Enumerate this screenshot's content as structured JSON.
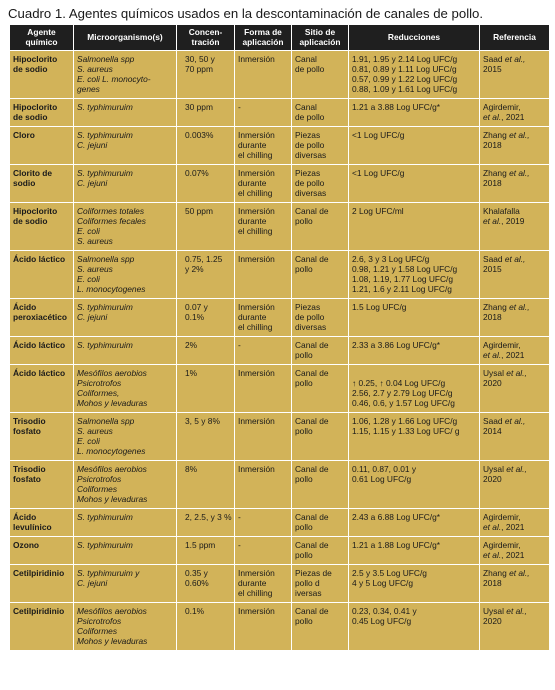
{
  "caption": "Cuadro 1. Agentes químicos usados en la descontaminación de canales de pollo.",
  "headers": [
    [
      "Agente",
      "químico"
    ],
    [
      "Microorganismo(s)"
    ],
    [
      "Concen-",
      "tración"
    ],
    [
      "Forma de",
      "aplicación"
    ],
    [
      "Sitio de",
      "aplicación"
    ],
    [
      "Reducciones"
    ],
    [
      "Referencia"
    ]
  ],
  "rows": [
    {
      "agent": [
        "Hipoclorito",
        "de sodio"
      ],
      "micro": [
        "Salmonella spp",
        "S. aureus",
        "E. coli  L. monocyto-",
        "genes"
      ],
      "conc": [
        "30, 50 y",
        "70 ppm"
      ],
      "form": [
        "Inmersión"
      ],
      "site": [
        "Canal",
        "de pollo"
      ],
      "red": [
        "1.91, 1.95 y 2.14 Log UFC/g",
        "0.81, 0.89 y 1.11 Log UFC/g",
        "0.57, 0.99 y 1.22 Log UFC/g",
        "0.88, 1.09 y 1.61 Log UFC/g"
      ],
      "ref": [
        [
          "Saad ",
          "et al.,"
        ],
        [
          "2015"
        ]
      ]
    },
    {
      "agent": [
        "Hipoclorito",
        "de sodio"
      ],
      "micro": [
        "S. typhimuruim"
      ],
      "conc": [
        "30 ppm"
      ],
      "form": [
        "-"
      ],
      "site": [
        "Canal",
        "de pollo"
      ],
      "red": [
        "1.21 a 3.88 Log UFC/g*"
      ],
      "ref": [
        [
          "Agirdemir,"
        ],
        [
          "",
          "et al.",
          ", 2021"
        ]
      ]
    },
    {
      "agent": [
        "Cloro"
      ],
      "micro": [
        "S. typhimuruim",
        "C. jejuni"
      ],
      "conc": [
        "0.003%"
      ],
      "form": [
        "Inmersión",
        "durante",
        "el chilling"
      ],
      "site": [
        "Piezas",
        "de pollo",
        "diversas"
      ],
      "red": [
        "<1 Log UFC/g"
      ],
      "ref": [
        [
          "Zhang ",
          "et al.,"
        ],
        [
          "2018"
        ]
      ]
    },
    {
      "agent": [
        "Clorito de",
        "sodio"
      ],
      "micro": [
        "S. typhimuruim",
        "C. jejuni"
      ],
      "conc": [
        "0.07%"
      ],
      "form": [
        "Inmersión",
        "durante",
        "el chilling"
      ],
      "site": [
        "Piezas",
        "de pollo",
        "diversas"
      ],
      "red": [
        "<1 Log UFC/g"
      ],
      "ref": [
        [
          "Zhang ",
          "et al.,"
        ],
        [
          "2018"
        ]
      ]
    },
    {
      "agent": [
        "Hipoclorito",
        "de sodio"
      ],
      "micro": [
        "Coliformes totales",
        "Coliformes fecales",
        "E. coli",
        "S. aureus"
      ],
      "conc": [
        "50 ppm"
      ],
      "form": [
        "Inmersión",
        "durante",
        "el chilling"
      ],
      "site": [
        "Canal de",
        "pollo"
      ],
      "red": [
        "2 Log UFC/ml"
      ],
      "ref": [
        [
          "Khalafalla"
        ],
        [
          "",
          "et al.",
          ", 2019"
        ]
      ]
    },
    {
      "agent": [
        "Ácido láctico"
      ],
      "micro": [
        "Salmonella spp",
        "S. aureus",
        "E. coli",
        "L. monocytogenes"
      ],
      "conc": [
        "0.75, 1.25",
        "y 2%"
      ],
      "form": [
        "Inmersión"
      ],
      "site": [
        "Canal de",
        "pollo"
      ],
      "red": [
        "2.6, 3 y 3 Log UFC/g",
        "0.98, 1.21 y 1.58 Log UFC/g",
        "1.08, 1.19, 1.77 Log UFC/g",
        "1.21, 1.6 y 2.11 Log UFC/g"
      ],
      "ref": [
        [
          "Saad ",
          "et al.,"
        ],
        [
          "2015"
        ]
      ]
    },
    {
      "agent": [
        "Ácido",
        "peroxiacético"
      ],
      "micro": [
        "S. typhimuruim",
        "C. jejuni"
      ],
      "conc": [
        "0.07 y",
        "0.1%"
      ],
      "form": [
        "Inmersión",
        "durante",
        "el chilling"
      ],
      "site": [
        "Piezas",
        "de pollo",
        "diversas"
      ],
      "red": [
        "1.5 Log UFC/g"
      ],
      "ref": [
        [
          "Zhang ",
          "et al.,"
        ],
        [
          "2018"
        ]
      ]
    },
    {
      "agent": [
        "Ácido láctico"
      ],
      "micro": [
        "S. typhimuruim"
      ],
      "conc": [
        "2%"
      ],
      "form": [
        "-"
      ],
      "site": [
        "Canal de",
        "pollo"
      ],
      "red": [
        "2.33 a 3.86 Log UFC/g*"
      ],
      "ref": [
        [
          "Agirdemir,"
        ],
        [
          "",
          "et al.",
          ", 2021"
        ]
      ]
    },
    {
      "agent": [
        "Ácido láctico"
      ],
      "micro": [
        "Mesófilos aerobios",
        "Psicrotrofos",
        "Coliformes,",
        "Mohos y levaduras"
      ],
      "conc": [
        "1%"
      ],
      "form": [
        "Inmersión"
      ],
      "site": [
        "Canal de",
        "pollo"
      ],
      "red": [
        "",
        "↑ 0.25, ↑ 0.04 Log UFC/g",
        "2.56, 2.7 y 2.79 Log UFC/g",
        "0.46, 0.6, y 1.57 Log UFC/g"
      ],
      "ref": [
        [
          "Uysal ",
          "et al.,"
        ],
        [
          "2020"
        ]
      ]
    },
    {
      "agent": [
        "Trisodio",
        "fosfato"
      ],
      "micro": [
        "Salmonella spp",
        "S. aureus",
        "E. coli",
        "L. monocytogenes"
      ],
      "conc": [
        "3, 5 y 8%"
      ],
      "form": [
        "Inmersión"
      ],
      "site": [
        "Canal de",
        "pollo"
      ],
      "red": [
        "1.06, 1.28 y 1.66 Log UFC/g",
        "1.15, 1.15 y 1.33 Log UFC/ g"
      ],
      "ref": [
        [
          "Saad ",
          "et al.,"
        ],
        [
          "2014"
        ]
      ]
    },
    {
      "agent": [
        "Trisodio",
        "fosfato"
      ],
      "micro": [
        "Mesófilos aerobios",
        "Psicrotrofos",
        "Coliformes",
        "Mohos y levaduras"
      ],
      "conc": [
        "8%"
      ],
      "form": [
        "Inmersión"
      ],
      "site": [
        "Canal de",
        "pollo"
      ],
      "red": [
        "0.11, 0.87, 0.01 y",
        "0.61 Log UFC/g"
      ],
      "ref": [
        [
          "Uysal ",
          "et al.,"
        ],
        [
          "2020"
        ]
      ]
    },
    {
      "agent": [
        "Ácido",
        "levulínico"
      ],
      "micro": [
        "S. typhimuruim"
      ],
      "conc": [
        "2, 2.5, y 3 %"
      ],
      "form": [
        "-"
      ],
      "site": [
        "Canal de",
        "pollo"
      ],
      "red": [
        "2.43 a 6.88 Log UFC/g*"
      ],
      "ref": [
        [
          "Agirdemir,"
        ],
        [
          "",
          "et al.",
          ", 2021"
        ]
      ]
    },
    {
      "agent": [
        "Ozono"
      ],
      "micro": [
        "S. typhimuruim"
      ],
      "conc": [
        "1.5 ppm"
      ],
      "form": [
        "-"
      ],
      "site": [
        "Canal de",
        "pollo"
      ],
      "red": [
        "1.21 a 1.88 Log UFC/g*"
      ],
      "ref": [
        [
          "Agirdemir,"
        ],
        [
          "",
          "et al.",
          ", 2021"
        ]
      ]
    },
    {
      "agent": [
        "Cetilpiridinio"
      ],
      "micro": [
        "S. typhimuruim y",
        "C. jejuni"
      ],
      "conc": [
        "0.35 y",
        "0.60%"
      ],
      "form": [
        "Inmersión",
        "durante",
        "el chilling"
      ],
      "site": [
        "Piezas de",
        "pollo d",
        "iversas"
      ],
      "red": [
        "2.5 y 3.5 Log UFC/g",
        "4 y 5 Log UFC/g"
      ],
      "ref": [
        [
          "Zhang ",
          "et al.,"
        ],
        [
          "2018"
        ]
      ]
    },
    {
      "agent": [
        "Cetilpiridinio"
      ],
      "micro": [
        "Mesófilos aerobios",
        "Psicrotrofos",
        "Coliformes",
        "Mohos y levaduras"
      ],
      "conc": [
        "0.1%"
      ],
      "form": [
        "Inmersión"
      ],
      "site": [
        "Canal de",
        "pollo"
      ],
      "red": [
        "0.23, 0.34, 0.41 y",
        "0.45 Log UFC/g"
      ],
      "ref": [
        [
          "Uysal ",
          "et al.,"
        ],
        [
          "2020"
        ]
      ]
    }
  ]
}
